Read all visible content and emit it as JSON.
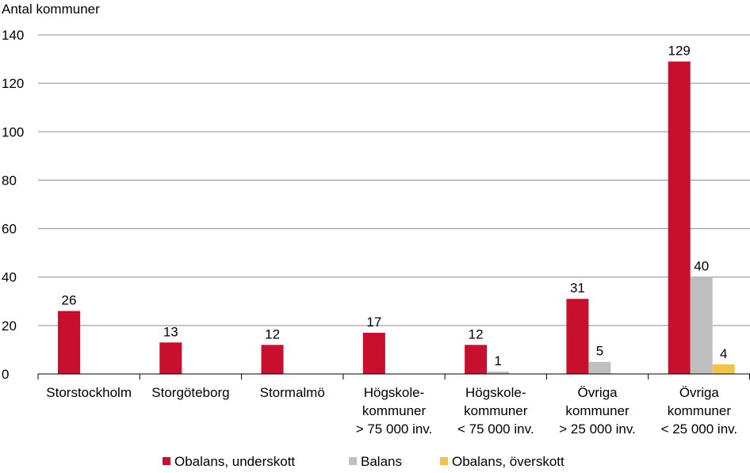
{
  "chart_data": {
    "type": "bar",
    "ylabel": "Antal kommuner",
    "ylim": [
      0,
      140
    ],
    "yticks": [
      0,
      20,
      40,
      60,
      80,
      100,
      120,
      140
    ],
    "grid": true,
    "legend_position": "bottom",
    "categories": [
      [
        "Storstockholm"
      ],
      [
        "Storgöteborg"
      ],
      [
        "Stormalmö"
      ],
      [
        "Högskole-",
        "kommuner",
        "> 75 000 inv."
      ],
      [
        "Högskole-",
        "kommuner",
        "< 75 000 inv."
      ],
      [
        "Övriga",
        "kommuner",
        "> 25 000 inv."
      ],
      [
        "Övriga",
        "kommuner",
        "< 25 000 inv."
      ]
    ],
    "series": [
      {
        "name": "Obalans, underskott",
        "color": "#c8102e",
        "values": [
          26,
          13,
          12,
          17,
          12,
          31,
          129
        ]
      },
      {
        "name": "Balans",
        "color": "#bfbfbf",
        "values": [
          null,
          null,
          null,
          null,
          1,
          5,
          40
        ]
      },
      {
        "name": "Obalans, överskott",
        "color": "#f0c34a",
        "values": [
          null,
          null,
          null,
          null,
          null,
          null,
          4
        ]
      }
    ]
  }
}
